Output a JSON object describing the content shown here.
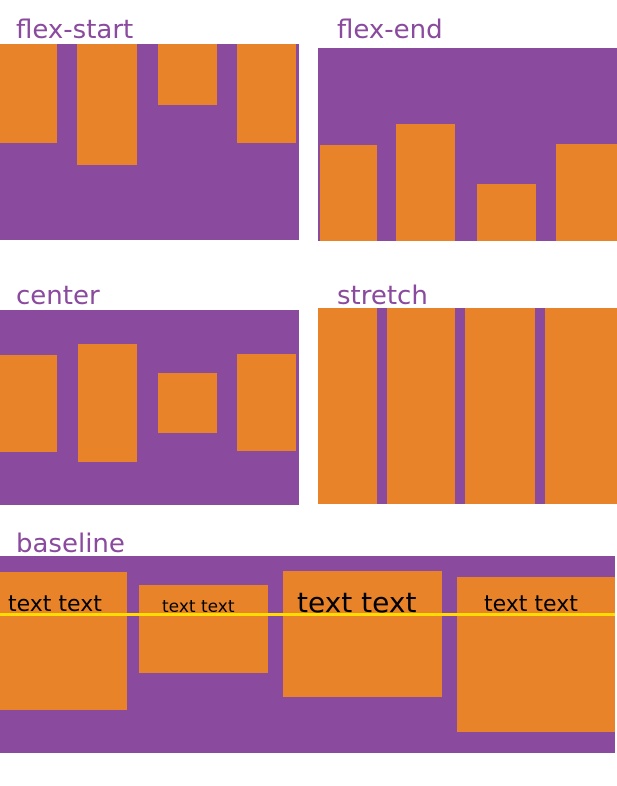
{
  "colors": {
    "container": "#8a4a9e",
    "item": "#e8832a",
    "label": "#8a4a9e",
    "baseline_line": "#ffdd00",
    "item_text": "#000000"
  },
  "panels": [
    {
      "label": "flex-start"
    },
    {
      "label": "flex-end"
    },
    {
      "label": "center"
    },
    {
      "label": "stretch"
    },
    {
      "label": "baseline",
      "items_text": [
        "text text",
        "text text",
        "text text",
        "text text"
      ]
    }
  ]
}
